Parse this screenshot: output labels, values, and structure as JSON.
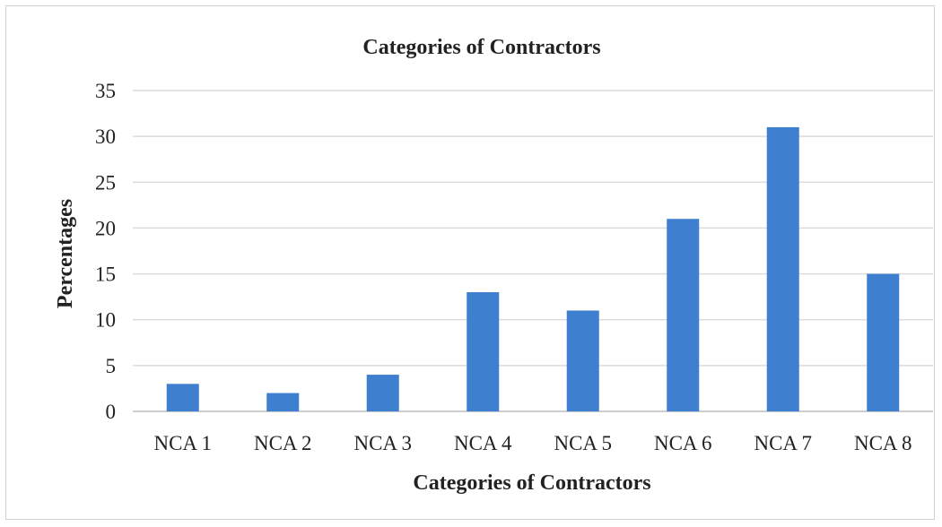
{
  "chart_data": {
    "type": "bar",
    "title": "Categories of Contractors",
    "xlabel": "Categories of Contractors",
    "ylabel": "Percentages",
    "categories": [
      "NCA 1",
      "NCA 2",
      "NCA 3",
      "NCA 4",
      "NCA 5",
      "NCA 6",
      "NCA 7",
      "NCA 8"
    ],
    "values": [
      3,
      2,
      4,
      13,
      11,
      21,
      31,
      15
    ],
    "ylim": [
      0,
      35
    ],
    "yticks": [
      "0",
      "5",
      "10",
      "15",
      "20",
      "25",
      "30",
      "35"
    ],
    "grid": true,
    "legend": "none",
    "bar_color": "#3f7fcf"
  }
}
